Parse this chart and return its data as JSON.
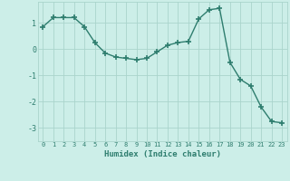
{
  "xlabel": "Humidex (Indice chaleur)",
  "x": [
    0,
    1,
    2,
    3,
    4,
    5,
    6,
    7,
    8,
    9,
    10,
    11,
    12,
    13,
    14,
    15,
    16,
    17,
    18,
    19,
    20,
    21,
    22,
    23
  ],
  "y": [
    0.85,
    1.2,
    1.2,
    1.2,
    0.85,
    0.25,
    -0.15,
    -0.3,
    -0.35,
    -0.4,
    -0.35,
    -0.1,
    0.15,
    0.25,
    0.3,
    1.15,
    1.5,
    1.55,
    -0.5,
    -1.15,
    -1.4,
    -2.2,
    -2.75,
    -2.8
  ],
  "line_color": "#2e7d6e",
  "marker": "+",
  "markersize": 4,
  "markeredgewidth": 1.2,
  "linewidth": 1.0,
  "background_color": "#cceee8",
  "grid_color": "#aad4cc",
  "tick_color": "#2e7d6e",
  "label_color": "#2e7d6e",
  "ylim": [
    -3.5,
    1.8
  ],
  "xlim": [
    -0.5,
    23.5
  ],
  "yticks": [
    -3,
    -2,
    -1,
    0,
    1
  ],
  "xticks": [
    0,
    1,
    2,
    3,
    4,
    5,
    6,
    7,
    8,
    9,
    10,
    11,
    12,
    13,
    14,
    15,
    16,
    17,
    18,
    19,
    20,
    21,
    22,
    23
  ]
}
